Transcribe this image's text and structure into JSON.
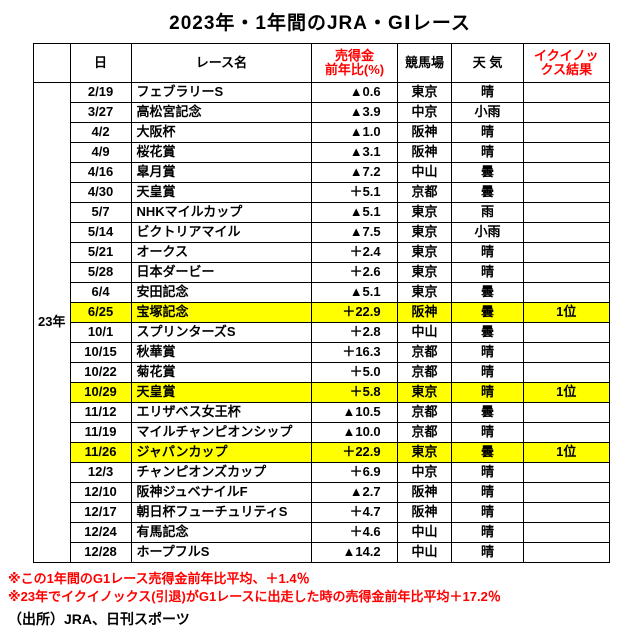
{
  "title": "2023年・1年間のJRA・GⅠレース",
  "colors": {
    "highlight_yellow": "#ffff00",
    "accent_red": "#ff0000",
    "border_black": "#000000"
  },
  "chart_data": {
    "type": "table",
    "title": "2023年・1年間のJRA・GⅠレース",
    "year_label": "23年",
    "headers": {
      "corner": "",
      "date": "日",
      "race": "レース名",
      "sales_l1": "売得金",
      "sales_l2": "前年比(%)",
      "track": "競馬場",
      "weather": "天 気",
      "result_l1": "イクイノッ",
      "result_l2": "クス結果"
    },
    "rows": [
      {
        "date": "2/19",
        "race": "フェブラリーS",
        "sales": "▲0.6",
        "track": "東京",
        "weather": "晴",
        "result": "",
        "highlight": false
      },
      {
        "date": "3/27",
        "race": "高松宮記念",
        "sales": "▲3.9",
        "track": "中京",
        "weather": "小雨",
        "result": "",
        "highlight": false
      },
      {
        "date": "4/2",
        "race": "大阪杯",
        "sales": "▲1.0",
        "track": "阪神",
        "weather": "晴",
        "result": "",
        "highlight": false
      },
      {
        "date": "4/9",
        "race": "桜花賞",
        "sales": "▲3.1",
        "track": "阪神",
        "weather": "晴",
        "result": "",
        "highlight": false
      },
      {
        "date": "4/16",
        "race": "皐月賞",
        "sales": "▲7.2",
        "track": "中山",
        "weather": "曇",
        "result": "",
        "highlight": false
      },
      {
        "date": "4/30",
        "race": "天皇賞",
        "sales": "＋5.1",
        "track": "京都",
        "weather": "曇",
        "result": "",
        "highlight": false
      },
      {
        "date": "5/7",
        "race": "NHKマイルカップ",
        "sales": "▲5.1",
        "track": "東京",
        "weather": "雨",
        "result": "",
        "highlight": false
      },
      {
        "date": "5/14",
        "race": "ビクトリアマイル",
        "sales": "▲7.5",
        "track": "東京",
        "weather": "小雨",
        "result": "",
        "highlight": false
      },
      {
        "date": "5/21",
        "race": "オークス",
        "sales": "＋2.4",
        "track": "東京",
        "weather": "晴",
        "result": "",
        "highlight": false
      },
      {
        "date": "5/28",
        "race": "日本ダービー",
        "sales": "＋2.6",
        "track": "東京",
        "weather": "晴",
        "result": "",
        "highlight": false
      },
      {
        "date": "6/4",
        "race": "安田記念",
        "sales": "▲5.1",
        "track": "東京",
        "weather": "曇",
        "result": "",
        "highlight": false
      },
      {
        "date": "6/25",
        "race": "宝塚記念",
        "sales": "＋22.9",
        "track": "阪神",
        "weather": "曇",
        "result": "1位",
        "highlight": true
      },
      {
        "date": "10/1",
        "race": "スプリンターズS",
        "sales": "＋2.8",
        "track": "中山",
        "weather": "曇",
        "result": "",
        "highlight": false
      },
      {
        "date": "10/15",
        "race": "秋華賞",
        "sales": "＋16.3",
        "track": "京都",
        "weather": "晴",
        "result": "",
        "highlight": false
      },
      {
        "date": "10/22",
        "race": "菊花賞",
        "sales": "＋5.0",
        "track": "京都",
        "weather": "晴",
        "result": "",
        "highlight": false
      },
      {
        "date": "10/29",
        "race": "天皇賞",
        "sales": "＋5.8",
        "track": "東京",
        "weather": "晴",
        "result": "1位",
        "highlight": true
      },
      {
        "date": "11/12",
        "race": "エリザベス女王杯",
        "sales": "▲10.5",
        "track": "京都",
        "weather": "曇",
        "result": "",
        "highlight": false
      },
      {
        "date": "11/19",
        "race": "マイルチャンピオンシップ",
        "sales": "▲10.0",
        "track": "京都",
        "weather": "晴",
        "result": "",
        "highlight": false
      },
      {
        "date": "11/26",
        "race": "ジャパンカップ",
        "sales": "＋22.9",
        "track": "東京",
        "weather": "曇",
        "result": "1位",
        "highlight": true
      },
      {
        "date": "12/3",
        "race": "チャンピオンズカップ",
        "sales": "＋6.9",
        "track": "中京",
        "weather": "晴",
        "result": "",
        "highlight": false
      },
      {
        "date": "12/10",
        "race": "阪神ジュベナイルF",
        "sales": "▲2.7",
        "track": "阪神",
        "weather": "晴",
        "result": "",
        "highlight": false
      },
      {
        "date": "12/17",
        "race": "朝日杯フューチュリティS",
        "sales": "＋4.7",
        "track": "阪神",
        "weather": "晴",
        "result": "",
        "highlight": false
      },
      {
        "date": "12/24",
        "race": "有馬記念",
        "sales": "＋4.6",
        "track": "中山",
        "weather": "晴",
        "result": "",
        "highlight": false
      },
      {
        "date": "12/28",
        "race": "ホープフルS",
        "sales": "▲14.2",
        "track": "中山",
        "weather": "晴",
        "result": "",
        "highlight": false
      }
    ],
    "notes": [
      "※この1年間のG1レース売得金前年比平均、＋1.4％",
      "※23年でイクイノックス(引退)がG1レースに出走した時の売得金前年比平均＋17.2％"
    ],
    "source": "（出所）JRA、日刊スポーツ"
  }
}
